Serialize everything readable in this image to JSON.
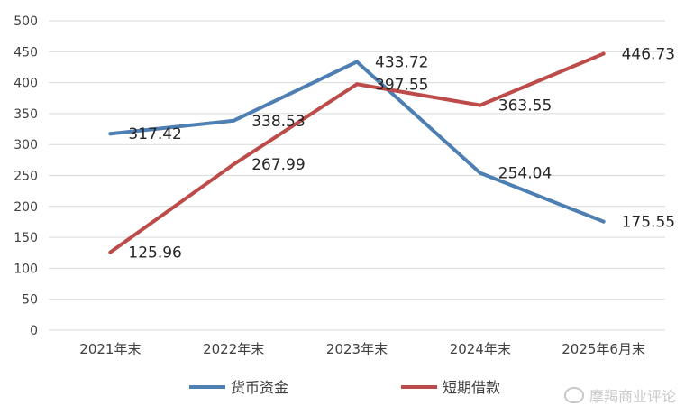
{
  "chart_data": {
    "type": "line",
    "categories": [
      "2021年末",
      "2022年末",
      "2023年末",
      "2024年末",
      "2025年6月末"
    ],
    "ylim": [
      0,
      500
    ],
    "yticks": [
      0,
      50,
      100,
      150,
      200,
      250,
      300,
      350,
      400,
      450,
      500
    ],
    "grid": true,
    "legend_position": "bottom",
    "series": [
      {
        "name": "货币资金",
        "color": "#4e7fb3",
        "values": [
          317.42,
          338.53,
          433.72,
          254.04,
          175.55
        ],
        "labels": [
          "317.42",
          "338.53",
          "433.72",
          "254.04",
          "175.55"
        ]
      },
      {
        "name": "短期借款",
        "color": "#bd4b49",
        "values": [
          125.96,
          267.99,
          397.55,
          363.55,
          446.73
        ],
        "labels": [
          "125.96",
          "267.99",
          "397.55",
          "363.55",
          "446.73"
        ]
      }
    ]
  },
  "watermark": {
    "text": "摩羯商业评论",
    "icon": "weibo-icon"
  }
}
